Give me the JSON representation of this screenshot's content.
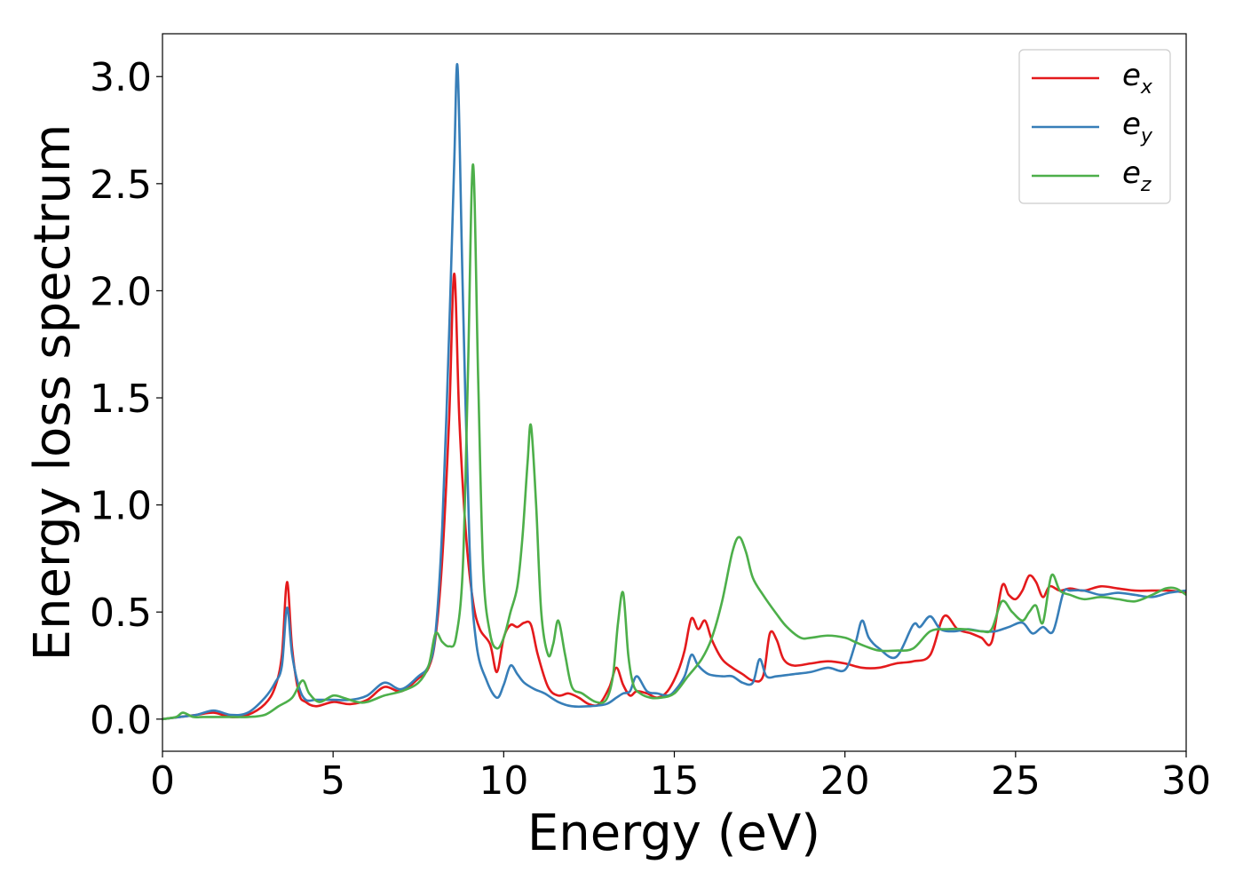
{
  "chart_data": {
    "type": "line",
    "title": "",
    "xlabel": "Energy (eV)",
    "ylabel": "Energy loss spectrum",
    "xlim": [
      0,
      30
    ],
    "ylim": [
      -0.15,
      3.2
    ],
    "xticks": [
      "0",
      "5",
      "10",
      "15",
      "20",
      "25",
      "30"
    ],
    "yticks": [
      "0.0",
      "0.5",
      "1.0",
      "1.5",
      "2.0",
      "2.5",
      "3.0"
    ],
    "grid": false,
    "legend_position": "top-right",
    "series": [
      {
        "name": "e_x",
        "label_main": "e",
        "label_sub": "x",
        "color": "#e41a1c",
        "x": [
          0,
          0.5,
          1.0,
          1.5,
          2.0,
          2.5,
          3.0,
          3.3,
          3.5,
          3.65,
          3.8,
          4.0,
          4.2,
          4.5,
          5.0,
          5.5,
          6.0,
          6.5,
          7.0,
          7.5,
          7.8,
          8.0,
          8.2,
          8.4,
          8.55,
          8.7,
          8.9,
          9.1,
          9.3,
          9.6,
          9.8,
          10.0,
          10.2,
          10.4,
          10.6,
          10.8,
          11.0,
          11.3,
          11.6,
          11.9,
          12.2,
          12.5,
          12.8,
          13.1,
          13.3,
          13.5,
          13.7,
          13.9,
          14.2,
          14.5,
          14.8,
          15.1,
          15.3,
          15.5,
          15.7,
          15.9,
          16.1,
          16.4,
          16.7,
          17.0,
          17.3,
          17.6,
          17.8,
          18.0,
          18.2,
          18.5,
          19.0,
          19.5,
          20.0,
          20.5,
          21.0,
          21.5,
          22.0,
          22.5,
          22.9,
          23.3,
          23.7,
          24.0,
          24.3,
          24.6,
          24.8,
          25.0,
          25.2,
          25.4,
          25.6,
          25.8,
          26.0,
          26.3,
          26.6,
          27.0,
          27.5,
          28.0,
          28.5,
          29.0,
          29.5,
          30.0
        ],
        "y": [
          0.0,
          0.01,
          0.02,
          0.03,
          0.01,
          0.02,
          0.07,
          0.15,
          0.3,
          0.64,
          0.33,
          0.12,
          0.08,
          0.06,
          0.08,
          0.07,
          0.09,
          0.15,
          0.13,
          0.19,
          0.24,
          0.38,
          0.75,
          1.4,
          2.08,
          1.4,
          0.85,
          0.55,
          0.42,
          0.35,
          0.22,
          0.38,
          0.44,
          0.43,
          0.45,
          0.44,
          0.3,
          0.15,
          0.11,
          0.12,
          0.1,
          0.07,
          0.07,
          0.15,
          0.24,
          0.16,
          0.11,
          0.13,
          0.12,
          0.1,
          0.13,
          0.22,
          0.32,
          0.47,
          0.42,
          0.46,
          0.37,
          0.28,
          0.24,
          0.21,
          0.18,
          0.2,
          0.4,
          0.37,
          0.28,
          0.25,
          0.26,
          0.27,
          0.26,
          0.24,
          0.24,
          0.26,
          0.27,
          0.3,
          0.48,
          0.42,
          0.4,
          0.38,
          0.36,
          0.62,
          0.58,
          0.56,
          0.6,
          0.67,
          0.64,
          0.57,
          0.62,
          0.6,
          0.61,
          0.6,
          0.62,
          0.61,
          0.6,
          0.6,
          0.6,
          0.59
        ]
      },
      {
        "name": "e_y",
        "label_main": "e",
        "label_sub": "y",
        "color": "#377eb8",
        "x": [
          0,
          0.5,
          1.0,
          1.5,
          2.0,
          2.5,
          3.0,
          3.3,
          3.5,
          3.65,
          3.8,
          4.0,
          4.2,
          4.5,
          5.0,
          5.5,
          6.0,
          6.5,
          7.0,
          7.5,
          7.8,
          8.0,
          8.2,
          8.4,
          8.55,
          8.65,
          8.8,
          9.0,
          9.2,
          9.5,
          9.8,
          10.0,
          10.2,
          10.4,
          10.6,
          10.9,
          11.2,
          11.6,
          12.0,
          12.5,
          13.0,
          13.3,
          13.5,
          13.7,
          13.9,
          14.2,
          14.5,
          14.8,
          15.0,
          15.3,
          15.5,
          15.7,
          16.0,
          16.4,
          16.7,
          17.0,
          17.3,
          17.5,
          17.7,
          18.0,
          18.5,
          19.0,
          19.5,
          20.0,
          20.3,
          20.5,
          20.7,
          21.0,
          21.5,
          22.0,
          22.2,
          22.5,
          22.8,
          23.2,
          23.6,
          24.0,
          24.4,
          24.8,
          25.2,
          25.5,
          25.8,
          26.1,
          26.4,
          26.6,
          27.0,
          27.5,
          28.0,
          28.5,
          29.0,
          29.5,
          30.0
        ],
        "y": [
          0.0,
          0.01,
          0.02,
          0.04,
          0.02,
          0.03,
          0.1,
          0.17,
          0.25,
          0.52,
          0.3,
          0.15,
          0.09,
          0.09,
          0.09,
          0.09,
          0.11,
          0.17,
          0.14,
          0.2,
          0.25,
          0.4,
          0.9,
          1.8,
          2.6,
          3.04,
          2.0,
          0.8,
          0.35,
          0.18,
          0.1,
          0.16,
          0.25,
          0.21,
          0.17,
          0.14,
          0.12,
          0.08,
          0.06,
          0.06,
          0.07,
          0.1,
          0.12,
          0.13,
          0.2,
          0.13,
          0.12,
          0.11,
          0.13,
          0.2,
          0.3,
          0.25,
          0.21,
          0.2,
          0.2,
          0.17,
          0.17,
          0.28,
          0.2,
          0.2,
          0.21,
          0.22,
          0.24,
          0.23,
          0.35,
          0.46,
          0.38,
          0.33,
          0.29,
          0.44,
          0.43,
          0.48,
          0.42,
          0.41,
          0.42,
          0.41,
          0.41,
          0.43,
          0.45,
          0.4,
          0.43,
          0.41,
          0.59,
          0.6,
          0.6,
          0.58,
          0.59,
          0.58,
          0.57,
          0.59,
          0.6
        ]
      },
      {
        "name": "e_z",
        "label_main": "e",
        "label_sub": "z",
        "color": "#4daf4a",
        "x": [
          0,
          0.4,
          0.6,
          0.9,
          1.2,
          1.6,
          2.0,
          2.5,
          3.0,
          3.4,
          3.8,
          4.1,
          4.3,
          4.6,
          5.0,
          5.3,
          5.7,
          6.0,
          6.5,
          7.0,
          7.5,
          7.8,
          8.0,
          8.2,
          8.4,
          8.6,
          8.8,
          8.95,
          9.1,
          9.25,
          9.4,
          9.6,
          9.8,
          10.0,
          10.2,
          10.4,
          10.55,
          10.7,
          10.8,
          10.95,
          11.1,
          11.3,
          11.45,
          11.6,
          11.8,
          12.0,
          12.3,
          12.7,
          13.0,
          13.2,
          13.35,
          13.5,
          13.65,
          13.8,
          14.0,
          14.3,
          14.6,
          15.0,
          15.4,
          15.8,
          16.1,
          16.4,
          16.7,
          16.9,
          17.1,
          17.3,
          17.6,
          18.0,
          18.3,
          18.7,
          19.0,
          19.5,
          20.0,
          20.3,
          20.6,
          21.0,
          21.5,
          22.0,
          22.5,
          23.0,
          23.5,
          24.0,
          24.3,
          24.6,
          24.9,
          25.2,
          25.4,
          25.6,
          25.8,
          26.05,
          26.3,
          26.6,
          27.0,
          27.5,
          28.0,
          28.5,
          29.0,
          29.4,
          29.7,
          30.0
        ],
        "y": [
          0.0,
          0.01,
          0.03,
          0.01,
          0.01,
          0.01,
          0.01,
          0.01,
          0.02,
          0.06,
          0.1,
          0.18,
          0.12,
          0.08,
          0.11,
          0.1,
          0.08,
          0.08,
          0.11,
          0.13,
          0.17,
          0.25,
          0.4,
          0.36,
          0.34,
          0.38,
          0.7,
          1.6,
          2.59,
          1.6,
          0.7,
          0.4,
          0.33,
          0.38,
          0.5,
          0.62,
          0.85,
          1.2,
          1.37,
          1.0,
          0.5,
          0.3,
          0.35,
          0.46,
          0.3,
          0.15,
          0.12,
          0.08,
          0.09,
          0.2,
          0.45,
          0.59,
          0.3,
          0.16,
          0.12,
          0.1,
          0.1,
          0.12,
          0.2,
          0.28,
          0.38,
          0.55,
          0.78,
          0.85,
          0.78,
          0.66,
          0.58,
          0.49,
          0.43,
          0.38,
          0.38,
          0.39,
          0.38,
          0.36,
          0.34,
          0.32,
          0.32,
          0.33,
          0.41,
          0.42,
          0.42,
          0.41,
          0.42,
          0.55,
          0.5,
          0.46,
          0.5,
          0.53,
          0.45,
          0.67,
          0.6,
          0.58,
          0.56,
          0.57,
          0.56,
          0.55,
          0.58,
          0.61,
          0.61,
          0.58
        ]
      }
    ]
  }
}
